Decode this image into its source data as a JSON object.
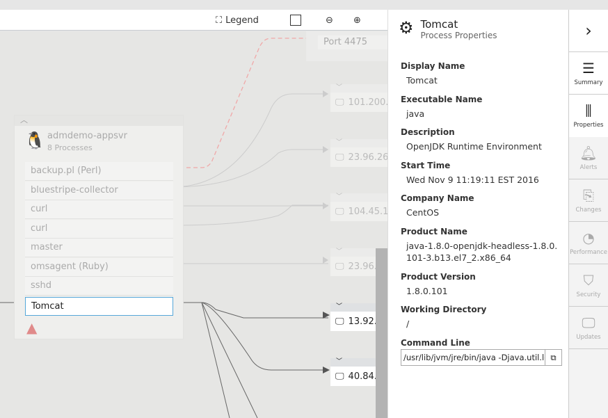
{
  "toolbar": {
    "legend": "Legend",
    "icons": [
      "legend-icon",
      "fit-icon",
      "zoom-out-icon",
      "zoom-in-icon"
    ]
  },
  "diagram": {
    "machine": {
      "name": "admdemo-appsvr",
      "subtitle": "8 Processes"
    },
    "processes": [
      "backup.pl (Perl)",
      "bluestripe-collector",
      "curl",
      "curl",
      "master",
      "omsagent (Ruby)",
      "sshd",
      "Tomcat"
    ],
    "selected_process": "Tomcat",
    "port": "Port 4475",
    "remote_nodes": [
      "101.200.",
      "23.96.26",
      "104.45.1",
      "23.96.",
      "13.92.",
      "40.84."
    ]
  },
  "panel": {
    "title": "Tomcat",
    "subtitle": "Process Properties",
    "properties": [
      {
        "label": "Display Name",
        "value": "Tomcat"
      },
      {
        "label": "Executable Name",
        "value": "java"
      },
      {
        "label": "Description",
        "value": "OpenJDK Runtime Environment"
      },
      {
        "label": "Start Time",
        "value": "Wed Nov 9 11:19:11 EST 2016"
      },
      {
        "label": "Company Name",
        "value": "CentOS"
      },
      {
        "label": "Product Name",
        "value": "java-1.8.0-openjdk-headless-1.8.0.101-3.b13.el7_2.x86_64"
      },
      {
        "label": "Product Version",
        "value": "1.8.0.101"
      },
      {
        "label": "Working Directory",
        "value": "/"
      },
      {
        "label": "Command Line",
        "value": "/usr/lib/jvm/jre/bin/java -Djava.util.logging"
      }
    ]
  },
  "sidebar": {
    "items": [
      "Summary",
      "Properties",
      "Alerts",
      "Changes",
      "Performance",
      "Security",
      "Updates"
    ]
  }
}
